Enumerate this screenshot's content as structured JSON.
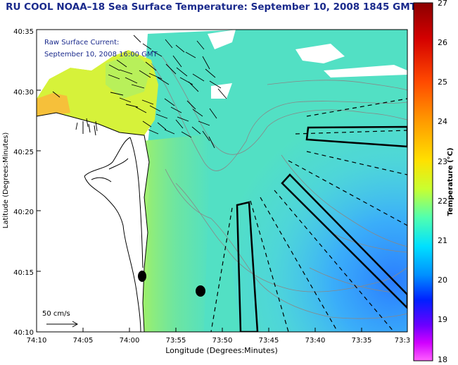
{
  "title": "RU COOL  NOAA–18  Sea Surface Temperature:  September 10, 2008 1845 GMT",
  "current_note": {
    "line1": "Raw Surface Current:",
    "line2": "September 10, 2008 16:00 GMT"
  },
  "scale_label": "50 cm/s",
  "axes": {
    "xlabel": "Longitude (Degrees:Minutes)",
    "ylabel": "Latitude (Degrees:Minutes)",
    "xticks": [
      "74:10",
      "74:05",
      "74:00",
      "73:55",
      "73:50",
      "73:45",
      "73:40",
      "73:35",
      "73:3"
    ],
    "yticks": [
      "40:35",
      "40:30",
      "40:25",
      "40:20",
      "40:15",
      "40:10"
    ]
  },
  "colorbar": {
    "label": "Temperature (°C)",
    "min": 18,
    "max": 27,
    "ticks": [
      "27",
      "26",
      "25",
      "24",
      "23",
      "22",
      "21",
      "20",
      "19",
      "18"
    ]
  },
  "colors": {
    "title": "#1a2a8c",
    "note": "#1a2a8c",
    "land": "#ffffff",
    "coastline": "#000000",
    "bathymetry": "#888888"
  }
}
